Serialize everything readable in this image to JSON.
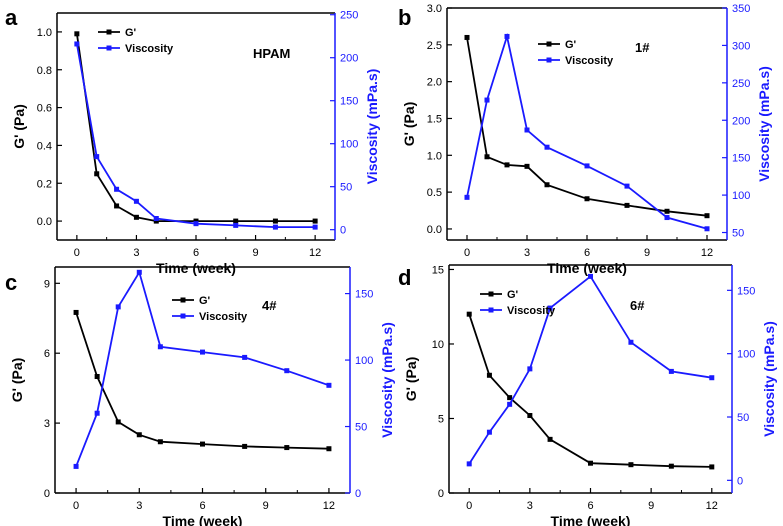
{
  "colors": {
    "g_series": "#000000",
    "viscosity_series": "#1a1aff",
    "axis": "#000000"
  },
  "chart_data": [
    {
      "type": "line",
      "panel": "a",
      "label": "HPAM",
      "xlabel": "Time (week)",
      "ylabel_left": "G' (Pa)",
      "ylabel_right": "Viscosity (mPa.s)",
      "xlim": [
        -1,
        13
      ],
      "xticks": [
        0,
        3,
        6,
        9,
        12
      ],
      "ylim_left": [
        -0.1,
        1.1
      ],
      "yticks_left": [
        0.0,
        0.2,
        0.4,
        0.6,
        0.8,
        1.0
      ],
      "ytick_fmt_left": 1,
      "ylim_right": [
        -12,
        252
      ],
      "yticks_right": [
        0,
        50,
        100,
        150,
        200,
        250
      ],
      "ytick_fmt_right": 0,
      "legend": [
        "G'",
        "Viscosity"
      ],
      "series": [
        {
          "name": "G'",
          "axis": "left",
          "x": [
            0,
            1,
            2,
            3,
            4,
            6,
            8,
            10,
            12
          ],
          "values": [
            0.99,
            0.25,
            0.08,
            0.02,
            0.0,
            0.0,
            0.0,
            0.0,
            0.0
          ]
        },
        {
          "name": "Viscosity",
          "axis": "right",
          "x": [
            0,
            1,
            2,
            3,
            4,
            6,
            8,
            10,
            12
          ],
          "values": [
            216,
            85,
            47,
            33,
            13,
            7,
            5,
            3,
            3
          ]
        }
      ]
    },
    {
      "type": "line",
      "panel": "b",
      "label": "1#",
      "xlabel": "Time (week)",
      "ylabel_left": "G' (Pa)",
      "ylabel_right": "Viscosity (mPa.s)",
      "xlim": [
        -1,
        13
      ],
      "xticks": [
        0,
        3,
        6,
        9,
        12
      ],
      "ylim_left": [
        -0.15,
        3.0
      ],
      "yticks_left": [
        0.0,
        0.5,
        1.0,
        1.5,
        2.0,
        2.5,
        3.0
      ],
      "ytick_fmt_left": 1,
      "ylim_right": [
        40,
        350
      ],
      "yticks_right": [
        50,
        100,
        150,
        200,
        250,
        300,
        350
      ],
      "ytick_fmt_right": 0,
      "legend": [
        "G'",
        "Viscosity"
      ],
      "series": [
        {
          "name": "G'",
          "axis": "left",
          "x": [
            0,
            1,
            2,
            3,
            4,
            6,
            8,
            10,
            12
          ],
          "values": [
            2.6,
            0.98,
            0.87,
            0.85,
            0.6,
            0.41,
            0.32,
            0.24,
            0.18
          ]
        },
        {
          "name": "Viscosity",
          "axis": "right",
          "x": [
            0,
            1,
            2,
            3,
            4,
            6,
            8,
            10,
            12
          ],
          "values": [
            97,
            227,
            312,
            187,
            164,
            139,
            112,
            70,
            55
          ]
        }
      ]
    },
    {
      "type": "line",
      "panel": "c",
      "label": "4#",
      "xlabel": "Time (week)",
      "ylabel_left": "G' (Pa)",
      "ylabel_right": "Viscosity (mPa.s)",
      "xlim": [
        -1,
        13
      ],
      "xticks": [
        0,
        3,
        6,
        9,
        12
      ],
      "ylim_left": [
        0,
        9.7
      ],
      "yticks_left": [
        0,
        3,
        6,
        9
      ],
      "ytick_fmt_left": 0,
      "ylim_right": [
        0,
        170
      ],
      "yticks_right": [
        0,
        50,
        100,
        150
      ],
      "ytick_fmt_right": 0,
      "legend": [
        "G'",
        "Viscosity"
      ],
      "series": [
        {
          "name": "G'",
          "axis": "left",
          "x": [
            0,
            1,
            2,
            3,
            4,
            6,
            8,
            10,
            12
          ],
          "values": [
            7.75,
            5.0,
            3.05,
            2.5,
            2.2,
            2.1,
            2.0,
            1.95,
            1.9
          ]
        },
        {
          "name": "Viscosity",
          "axis": "right",
          "x": [
            0,
            1,
            2,
            3,
            4,
            6,
            8,
            10,
            12
          ],
          "values": [
            20,
            60,
            140,
            166,
            110,
            106,
            102,
            92,
            81
          ]
        }
      ]
    },
    {
      "type": "line",
      "panel": "d",
      "label": "6#",
      "xlabel": "Time (week)",
      "ylabel_left": "G' (Pa)",
      "ylabel_right": "Viscosity (mPa.s)",
      "xlim": [
        -1,
        13
      ],
      "xticks": [
        0,
        3,
        6,
        9,
        12
      ],
      "ylim_left": [
        0,
        15.3
      ],
      "yticks_left": [
        0,
        5,
        10,
        15
      ],
      "ytick_fmt_left": 0,
      "ylim_right": [
        -10,
        170
      ],
      "yticks_right": [
        0,
        50,
        100,
        150
      ],
      "ytick_fmt_right": 0,
      "legend": [
        "G'",
        "Viscosity"
      ],
      "series": [
        {
          "name": "G'",
          "axis": "left",
          "x": [
            0,
            1,
            2,
            3,
            4,
            6,
            8,
            10,
            12
          ],
          "values": [
            12.0,
            7.9,
            6.4,
            5.2,
            3.6,
            2.0,
            1.9,
            1.8,
            1.75
          ]
        },
        {
          "name": "Viscosity",
          "axis": "right",
          "x": [
            0,
            1,
            2,
            3,
            4,
            6,
            8,
            10,
            12
          ],
          "values": [
            13,
            38,
            60,
            88,
            136,
            161,
            109,
            86,
            81
          ]
        }
      ]
    }
  ]
}
